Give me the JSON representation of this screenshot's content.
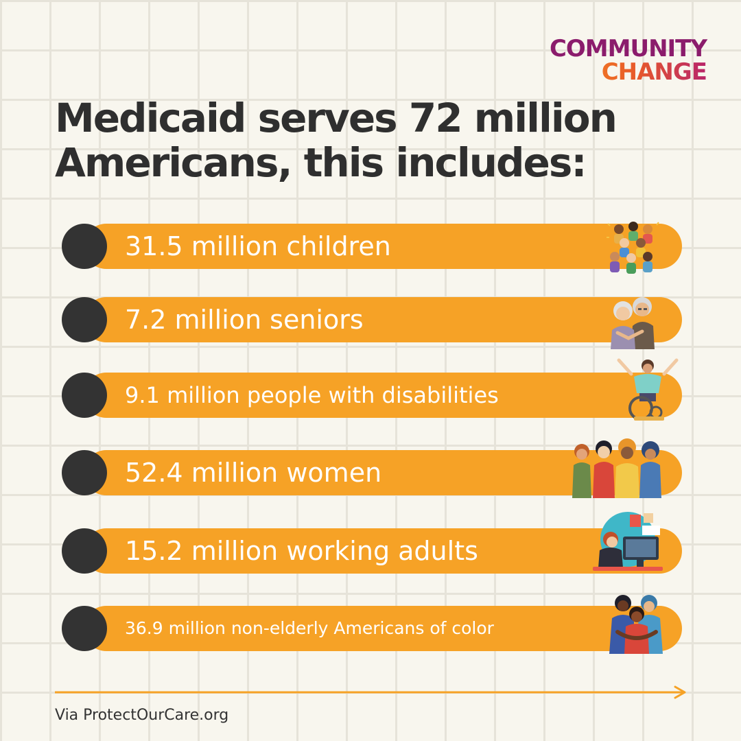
{
  "logo": {
    "line1": "COMMUNITY",
    "line2": "CHANGE"
  },
  "headline": "Medicaid serves 72 million Americans, this includes:",
  "items": [
    {
      "label": "31.5 million children",
      "icon": "children-group-icon"
    },
    {
      "label": "7.2 million seniors",
      "icon": "senior-couple-icon"
    },
    {
      "label": "9.1 million people with disabilities",
      "icon": "wheelchair-user-icon"
    },
    {
      "label": "52.4 million women",
      "icon": "women-group-icon"
    },
    {
      "label": "15.2 million working adults",
      "icon": "worker-at-computer-icon"
    },
    {
      "label": "36.9 million non-elderly Americans of color",
      "icon": "hugging-people-icon"
    }
  ],
  "source": "Via ProtectOurCare.org",
  "colors": {
    "background": "#f8f6ee",
    "grid": "#e6e3d9",
    "pill": "#f6a226",
    "dot": "#333333",
    "headline": "#2f2f2f",
    "logo_purple": "#8b1c6c",
    "logo_orange": "#f7921e",
    "arrow": "#f6a226"
  }
}
